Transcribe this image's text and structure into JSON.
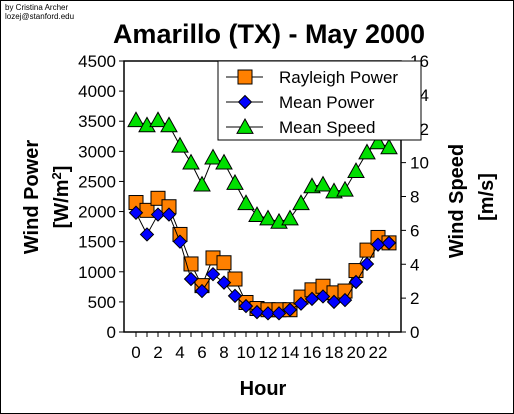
{
  "credit": {
    "line1": "by Cristina Archer",
    "line2": "lozej@stanford.edu"
  },
  "chart_data": {
    "type": "line",
    "title": "Amarillo (TX) - May 2000",
    "xlabel": "Hour",
    "ylabel_left": {
      "main": "Wind Power",
      "unit_prefix": "[W/m",
      "unit_sup": "2",
      "unit_suffix": "]"
    },
    "ylabel_right": {
      "main": "Wind Speed",
      "unit": "[m/s]"
    },
    "x": [
      0,
      1,
      2,
      3,
      4,
      5,
      6,
      7,
      8,
      9,
      10,
      11,
      12,
      13,
      14,
      15,
      16,
      17,
      18,
      19,
      20,
      21,
      22,
      23
    ],
    "x_tick_labels": [
      "0",
      "2",
      "4",
      "6",
      "8",
      "10",
      "12",
      "14",
      "16",
      "18",
      "20",
      "22"
    ],
    "xlim": [
      0,
      23
    ],
    "ylim_left": [
      0,
      4500
    ],
    "y_ticks_left": [
      "0",
      "500",
      "1000",
      "1500",
      "2000",
      "2500",
      "3000",
      "3500",
      "4000",
      "4500"
    ],
    "ylim_right": [
      0,
      16
    ],
    "y_ticks_right": [
      "0",
      "2",
      "4",
      "6",
      "8",
      "10",
      "12",
      "14",
      "16"
    ],
    "grid": false,
    "legend_position": "top-right",
    "series": [
      {
        "name": "Rayleigh Power",
        "axis": "left",
        "marker": "square",
        "color": "#ff8000",
        "values": [
          2150,
          2020,
          2220,
          2080,
          1620,
          1130,
          770,
          1230,
          1150,
          880,
          490,
          390,
          370,
          370,
          370,
          580,
          700,
          760,
          650,
          680,
          1020,
          1360,
          1570,
          1480
        ]
      },
      {
        "name": "Mean Power",
        "axis": "left",
        "marker": "diamond",
        "color": "#0000ff",
        "values": [
          1980,
          1620,
          1950,
          1950,
          1500,
          880,
          680,
          960,
          820,
          600,
          430,
          330,
          310,
          310,
          370,
          470,
          550,
          590,
          500,
          530,
          830,
          1130,
          1450,
          1480
        ]
      },
      {
        "name": "Mean Speed",
        "axis": "right",
        "marker": "triangle",
        "color": "#00e000",
        "values": [
          12.5,
          12.2,
          12.5,
          12.2,
          11.0,
          10.0,
          8.7,
          10.3,
          10.0,
          8.8,
          7.6,
          6.9,
          6.7,
          6.5,
          6.7,
          7.6,
          8.6,
          8.7,
          8.3,
          8.4,
          9.5,
          10.6,
          11.2,
          10.9
        ]
      }
    ]
  }
}
